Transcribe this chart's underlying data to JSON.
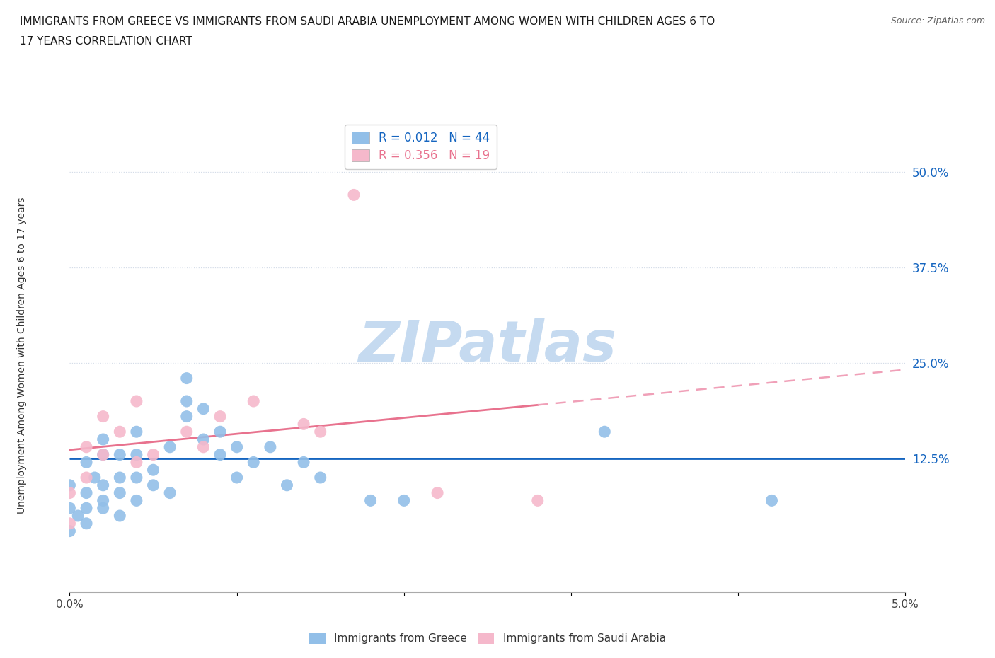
{
  "title_line1": "IMMIGRANTS FROM GREECE VS IMMIGRANTS FROM SAUDI ARABIA UNEMPLOYMENT AMONG WOMEN WITH CHILDREN AGES 6 TO",
  "title_line2": "17 YEARS CORRELATION CHART",
  "source": "Source: ZipAtlas.com",
  "ylabel": "Unemployment Among Women with Children Ages 6 to 17 years",
  "xlim": [
    0.0,
    0.05
  ],
  "ylim": [
    -0.05,
    0.57
  ],
  "ytick_positions": [
    0.125,
    0.25,
    0.375,
    0.5
  ],
  "ytick_labels": [
    "12.5%",
    "25.0%",
    "37.5%",
    "50.0%"
  ],
  "greece_color": "#92bfe8",
  "saudi_color": "#f5b8cb",
  "greece_R": 0.012,
  "greece_N": 44,
  "saudi_R": 0.356,
  "saudi_N": 19,
  "watermark": "ZIPatlas",
  "watermark_color": "#c5daf0",
  "greece_x": [
    0.0,
    0.0,
    0.0,
    0.0005,
    0.001,
    0.001,
    0.001,
    0.001,
    0.0015,
    0.002,
    0.002,
    0.002,
    0.002,
    0.002,
    0.003,
    0.003,
    0.003,
    0.003,
    0.004,
    0.004,
    0.004,
    0.004,
    0.005,
    0.005,
    0.006,
    0.006,
    0.007,
    0.007,
    0.007,
    0.008,
    0.008,
    0.009,
    0.009,
    0.01,
    0.01,
    0.011,
    0.012,
    0.013,
    0.014,
    0.015,
    0.018,
    0.02,
    0.032,
    0.042
  ],
  "greece_y": [
    0.03,
    0.06,
    0.09,
    0.05,
    0.04,
    0.06,
    0.08,
    0.12,
    0.1,
    0.06,
    0.07,
    0.09,
    0.13,
    0.15,
    0.05,
    0.08,
    0.1,
    0.13,
    0.07,
    0.1,
    0.13,
    0.16,
    0.09,
    0.11,
    0.08,
    0.14,
    0.18,
    0.2,
    0.23,
    0.15,
    0.19,
    0.13,
    0.16,
    0.1,
    0.14,
    0.12,
    0.14,
    0.09,
    0.12,
    0.1,
    0.07,
    0.07,
    0.16,
    0.07
  ],
  "saudi_x": [
    0.0,
    0.0,
    0.001,
    0.001,
    0.002,
    0.002,
    0.003,
    0.004,
    0.004,
    0.005,
    0.007,
    0.008,
    0.009,
    0.011,
    0.014,
    0.015,
    0.017,
    0.022,
    0.028
  ],
  "saudi_y": [
    0.04,
    0.08,
    0.1,
    0.14,
    0.13,
    0.18,
    0.16,
    0.12,
    0.2,
    0.13,
    0.16,
    0.14,
    0.18,
    0.2,
    0.17,
    0.16,
    0.47,
    0.08,
    0.07
  ],
  "greece_line_intercept": 0.125,
  "greece_line_slope": 0.0,
  "saudi_line_x0": 0.0,
  "saudi_line_y0": 0.0,
  "saudi_line_x1": 0.028,
  "saudi_line_x_dash_end": 0.05,
  "greece_line_color": "#1565c0",
  "saudi_line_color": "#e8728e",
  "saudi_line_dash_color": "#f0a0b8",
  "grid_color": "#d4dce8",
  "bg_color": "#ffffff",
  "legend_border_color": "#cccccc",
  "bottom_legend_labels": [
    "Immigrants from Greece",
    "Immigrants from Saudi Arabia"
  ]
}
